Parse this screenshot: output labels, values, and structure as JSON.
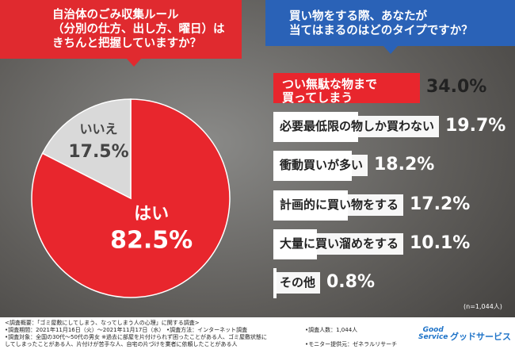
{
  "chart_data": [
    {
      "type": "pie",
      "title": "自治体のごみ収集ルール\n（分別の仕方、出し方、曜日）は\nきちんと把握していますか？",
      "categories": [
        "はい",
        "いいえ"
      ],
      "values": [
        82.5,
        17.5
      ],
      "value_labels": [
        "82.5%",
        "17.5%"
      ],
      "colors": [
        "#e8262d",
        "#d9d9d9"
      ]
    },
    {
      "type": "hbar",
      "title": "買い物をする際、あなたが\n当てはまるのはどのタイプですか？",
      "categories": [
        "つい無駄な物まで\n買ってしまう",
        "必要最低限の物しか買わない",
        "衝動買いが多い",
        "計画的に買い物をする",
        "大量に買い溜めをする",
        "その他"
      ],
      "values": [
        34.0,
        19.7,
        18.2,
        17.2,
        10.1,
        0.8
      ],
      "value_labels": [
        "34.0%",
        "19.7%",
        "18.2%",
        "17.2%",
        "10.1%",
        "0.8%"
      ],
      "colors": [
        "#e8262d",
        "#ffffff",
        "#ffffff",
        "#ffffff",
        "#ffffff",
        "#ffffff"
      ],
      "note": "(n=1,044人)"
    }
  ],
  "footer": {
    "survey": "<調査概要：「ゴミ屋敷にしてしまう、なってしまう人の心理」に関する調査>",
    "period": "•調査期間：2021年11月16日（火）～2021年11月17日（水）",
    "method": "•調査方法：インターネット調査",
    "count": "•調査人数：1,044人",
    "target": "•調査対象：全国の30代～50代の男女 ※過去に部屋を片付けられず困ったことがある人、ゴミ屋敷状態に\nしてしまったことがある人、片付けが苦手な人、自宅の片づけを業者に依頼したことがある人",
    "provider": "•モニター提供元：ゼネラルリサーチ",
    "logo_en": "Good\nService",
    "logo_ja": "グッドサービス"
  }
}
